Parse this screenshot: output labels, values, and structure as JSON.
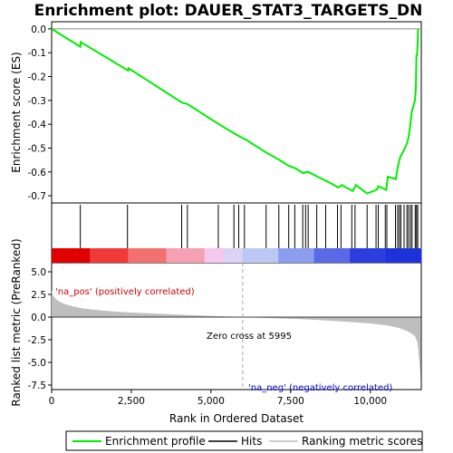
{
  "chart_data": {
    "type": "line",
    "title": "Enrichment plot: DAUER_STAT3_TARGETS_DN",
    "xlabel": "Rank in Ordered Dataset",
    "xlim": [
      0,
      11600
    ],
    "x_ticks": [
      0,
      2500,
      5000,
      7500,
      10000
    ],
    "x_tick_labels": [
      "0",
      "2,500",
      "5,000",
      "7,500",
      "10,000"
    ],
    "es_panel": {
      "ylabel": "Enrichment score (ES)",
      "ylim": [
        -0.73,
        0.03
      ],
      "y_ticks": [
        0.0,
        -0.1,
        -0.2,
        -0.3,
        -0.4,
        -0.5,
        -0.6,
        -0.7
      ],
      "y_tick_labels": [
        "0.0",
        "-0.1",
        "-0.2",
        "-0.3",
        "-0.4",
        "-0.5",
        "-0.6",
        "-0.7"
      ],
      "series": [
        {
          "name": "Enrichment profile",
          "color": "#00ee00",
          "x": [
            0,
            900,
            910,
            2400,
            2410,
            4100,
            4260,
            5250,
            5750,
            5950,
            6100,
            6750,
            7150,
            7450,
            7650,
            7900,
            8000,
            8050,
            8350,
            8650,
            9000,
            9100,
            9450,
            9550,
            9900,
            10200,
            10250,
            10500,
            10550,
            10800,
            10850,
            10900,
            10950,
            11050,
            11150,
            11200,
            11250,
            11300,
            11400,
            11430,
            11450,
            11470,
            11490,
            11500
          ],
          "y": [
            0.0,
            -0.075,
            -0.055,
            -0.175,
            -0.165,
            -0.31,
            -0.315,
            -0.4,
            -0.44,
            -0.455,
            -0.465,
            -0.52,
            -0.55,
            -0.575,
            -0.585,
            -0.605,
            -0.6,
            -0.6,
            -0.62,
            -0.64,
            -0.665,
            -0.655,
            -0.68,
            -0.655,
            -0.69,
            -0.675,
            -0.66,
            -0.675,
            -0.62,
            -0.63,
            -0.59,
            -0.555,
            -0.535,
            -0.51,
            -0.48,
            -0.455,
            -0.41,
            -0.35,
            -0.3,
            -0.25,
            -0.11,
            -0.11,
            -0.05,
            0.0
          ]
        }
      ]
    },
    "hits": [
      900,
      2380,
      4080,
      4260,
      5230,
      5720,
      5870,
      6050,
      6730,
      7130,
      7440,
      7630,
      7880,
      7970,
      8050,
      8320,
      8600,
      8970,
      9080,
      9420,
      9520,
      9900,
      10180,
      10250,
      10470,
      10520,
      10790,
      10860,
      10910,
      10960,
      11060,
      11150,
      11200,
      11260,
      11310,
      11410,
      11450,
      11490
    ],
    "metric_panel": {
      "ylabel": "Ranked list metric (PreRanked)",
      "ylim": [
        -8.0,
        6.0
      ],
      "y_ticks": [
        5.0,
        2.5,
        0.0,
        -2.5,
        -5.0,
        -7.5
      ],
      "y_tick_labels": [
        "5.0",
        "2.5",
        "0.0",
        "-2.5",
        "-5.0",
        "-7.5"
      ],
      "fill_color": "#bebebe",
      "x": [
        0,
        30,
        100,
        200,
        400,
        700,
        1000,
        1500,
        2000,
        2500,
        3000,
        4000,
        5000,
        5995,
        7000,
        8000,
        9000,
        10000,
        10500,
        10900,
        11200,
        11400,
        11480,
        11520,
        11560,
        11590
      ],
      "y": [
        3.0,
        2.5,
        2.1,
        1.8,
        1.45,
        1.15,
        0.95,
        0.75,
        0.6,
        0.5,
        0.42,
        0.28,
        0.12,
        0.0,
        -0.12,
        -0.25,
        -0.45,
        -0.7,
        -0.9,
        -1.2,
        -1.6,
        -2.1,
        -2.8,
        -4.2,
        -5.8,
        -7.5
      ]
    },
    "zero_cross_label": "Zero cross at 5995",
    "zero_cross_value": 5995,
    "pos_label": "'na_pos' (positively correlated)",
    "neg_label": "'na_neg' (negatively correlated)",
    "gradient_colors": [
      "#e00000",
      "#f03a3a",
      "#f27070",
      "#f6a0b4",
      "#f5c8f0",
      "#dcd2f6",
      "#bcc8f4",
      "#8c9cee",
      "#5a6ae6",
      "#2c3ede",
      "#1e32da"
    ],
    "legend": [
      {
        "label": "Enrichment profile",
        "color": "#00ee00"
      },
      {
        "label": "Hits",
        "color": "#000000"
      },
      {
        "label": "Ranking metric scores",
        "color": "#bebebe"
      }
    ]
  }
}
